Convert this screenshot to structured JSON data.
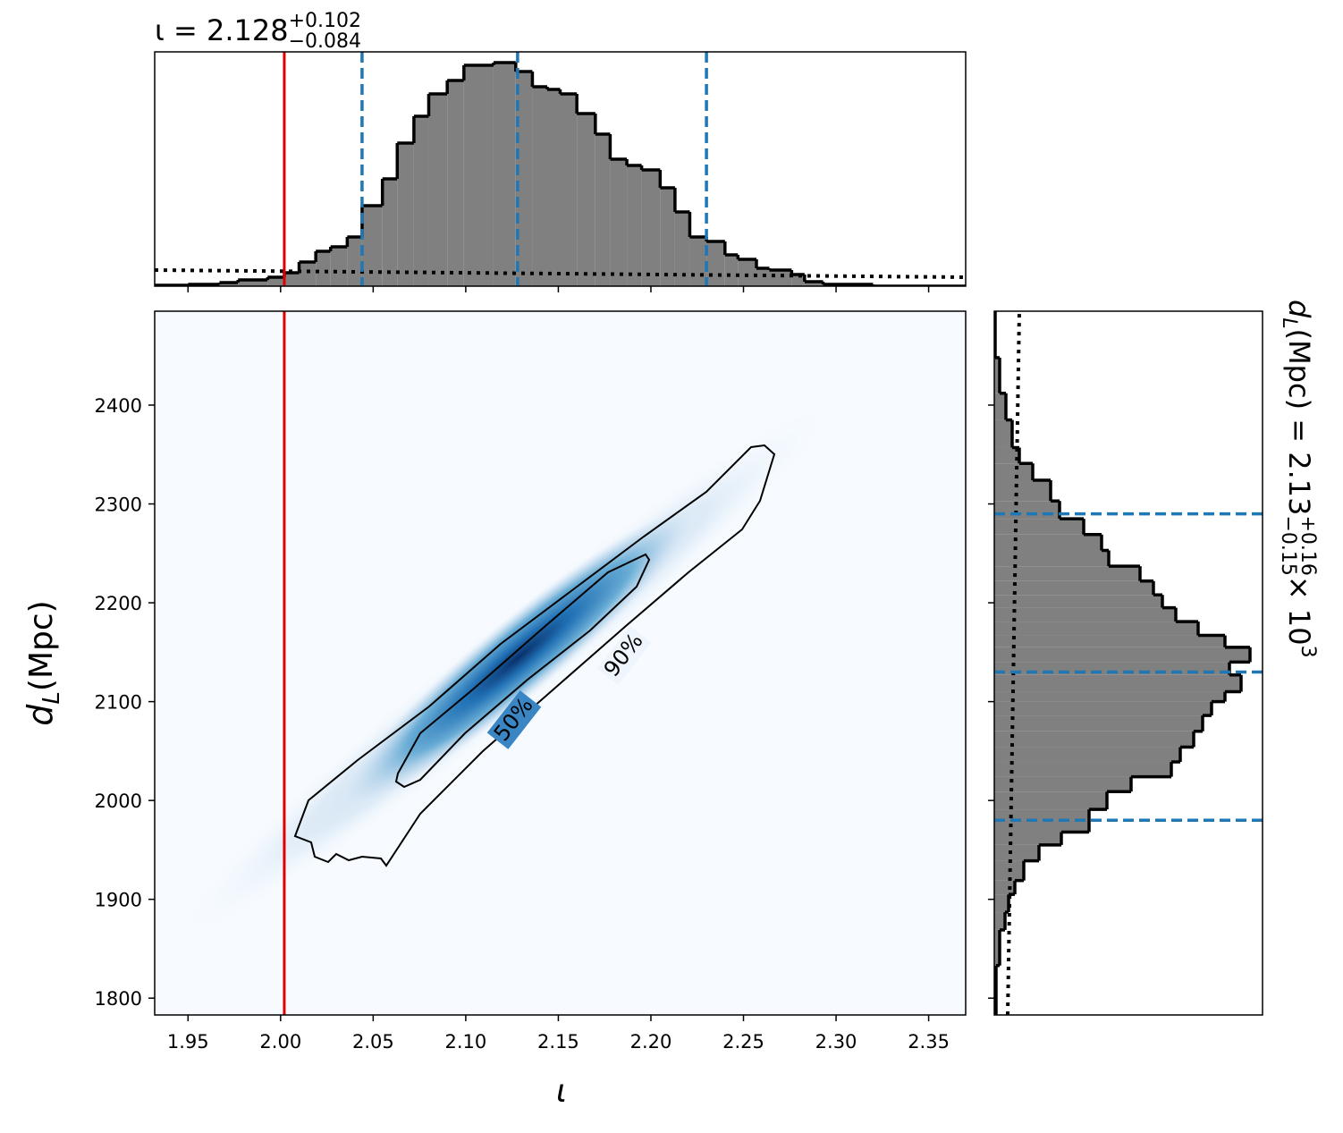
{
  "chart_data": [
    {
      "type": "histogram",
      "title": {
        "base": "ι = 2.128",
        "sup": "+0.102",
        "sub": "−0.084"
      },
      "bins": [
        1.932,
        1.95,
        1.967,
        1.977,
        1.993,
        2.002,
        2.01,
        2.019,
        2.027,
        2.036,
        2.044,
        2.055,
        2.063,
        2.072,
        2.08,
        2.09,
        2.099,
        2.115,
        2.127,
        2.136,
        2.144,
        2.151,
        2.16,
        2.17,
        2.178,
        2.187,
        2.195,
        2.205,
        2.213,
        2.221,
        2.23,
        2.24,
        2.247,
        2.257,
        2.264,
        2.276,
        2.283,
        2.293,
        2.32,
        2.37
      ],
      "values": [
        1,
        2,
        4,
        7,
        10,
        15,
        27,
        39,
        44,
        55,
        90,
        120,
        160,
        190,
        215,
        230,
        247,
        250,
        240,
        223,
        220,
        215,
        193,
        170,
        142,
        135,
        130,
        110,
        83,
        55,
        50,
        35,
        30,
        20,
        18,
        13,
        5,
        2,
        0
      ],
      "color": "#808080",
      "edgecolor": "#000000",
      "xlim": [
        1.932,
        2.37
      ],
      "ylim": [
        0,
        262
      ],
      "prior": {
        "x": [
          1.932,
          2.37
        ],
        "values": [
          18,
          10
        ]
      },
      "truth": {
        "value": 2.002,
        "color": "#e00000"
      },
      "quantiles": {
        "values": [
          2.044,
          2.128,
          2.23
        ],
        "color": "#1f77b4"
      }
    },
    {
      "type": "density2d",
      "xlabel": "ι",
      "ylabel": {
        "base": "d",
        "sub": "L",
        "rest": " (Mpc)"
      },
      "xlim": [
        1.932,
        2.37
      ],
      "ylim": [
        1783,
        2495
      ],
      "xticks": [
        1.95,
        {
          "value": 2.0,
          "label": "2.00"
        },
        2.05,
        {
          "value": 2.1,
          "label": "2.10"
        },
        2.15,
        {
          "value": 2.2,
          "label": "2.20"
        },
        2.25,
        {
          "value": 2.3,
          "label": "2.30"
        },
        2.35
      ],
      "yticks": [
        1800,
        1900,
        2000,
        2100,
        2200,
        2300,
        2400
      ],
      "truth": {
        "value": 2.002,
        "color": "#e00000"
      },
      "contour_labels": [
        "50%",
        "90%"
      ]
    },
    {
      "type": "histogram",
      "orientation": "horizontal",
      "label": {
        "base": "d",
        "sub": "L",
        "rest": " (Mpc) = 2.13",
        "sup": "+0.16",
        "sub2": "−0.15",
        "times": " × 10",
        "exp": "3"
      },
      "bins": [
        1783,
        1833,
        1869,
        1887,
        1905,
        1919,
        1939,
        1955,
        1968,
        1991,
        2009,
        2024,
        2039,
        2054,
        2070,
        2086,
        2100,
        2110,
        2127,
        2140,
        2155,
        2167,
        2181,
        2195,
        2208,
        2222,
        2237,
        2253,
        2269,
        2285,
        2303,
        2324,
        2341,
        2357,
        2385,
        2412,
        2448,
        2495
      ],
      "values": [
        2,
        6,
        12,
        16,
        23,
        33,
        50,
        75,
        106,
        126,
        153,
        198,
        208,
        223,
        233,
        243,
        258,
        276,
        263,
        286,
        258,
        228,
        203,
        188,
        178,
        163,
        128,
        120,
        100,
        73,
        63,
        43,
        28,
        20,
        13,
        6,
        1
      ],
      "color": "#808080",
      "edgecolor": "#000000",
      "xlim": [
        0,
        300
      ],
      "ylim": [
        1783,
        2495
      ],
      "prior": {
        "y": [
          1783,
          2495
        ],
        "values": [
          15,
          28
        ]
      },
      "quantiles": {
        "values": [
          1980,
          2130,
          2290
        ],
        "color": "#1f77b4"
      }
    }
  ]
}
